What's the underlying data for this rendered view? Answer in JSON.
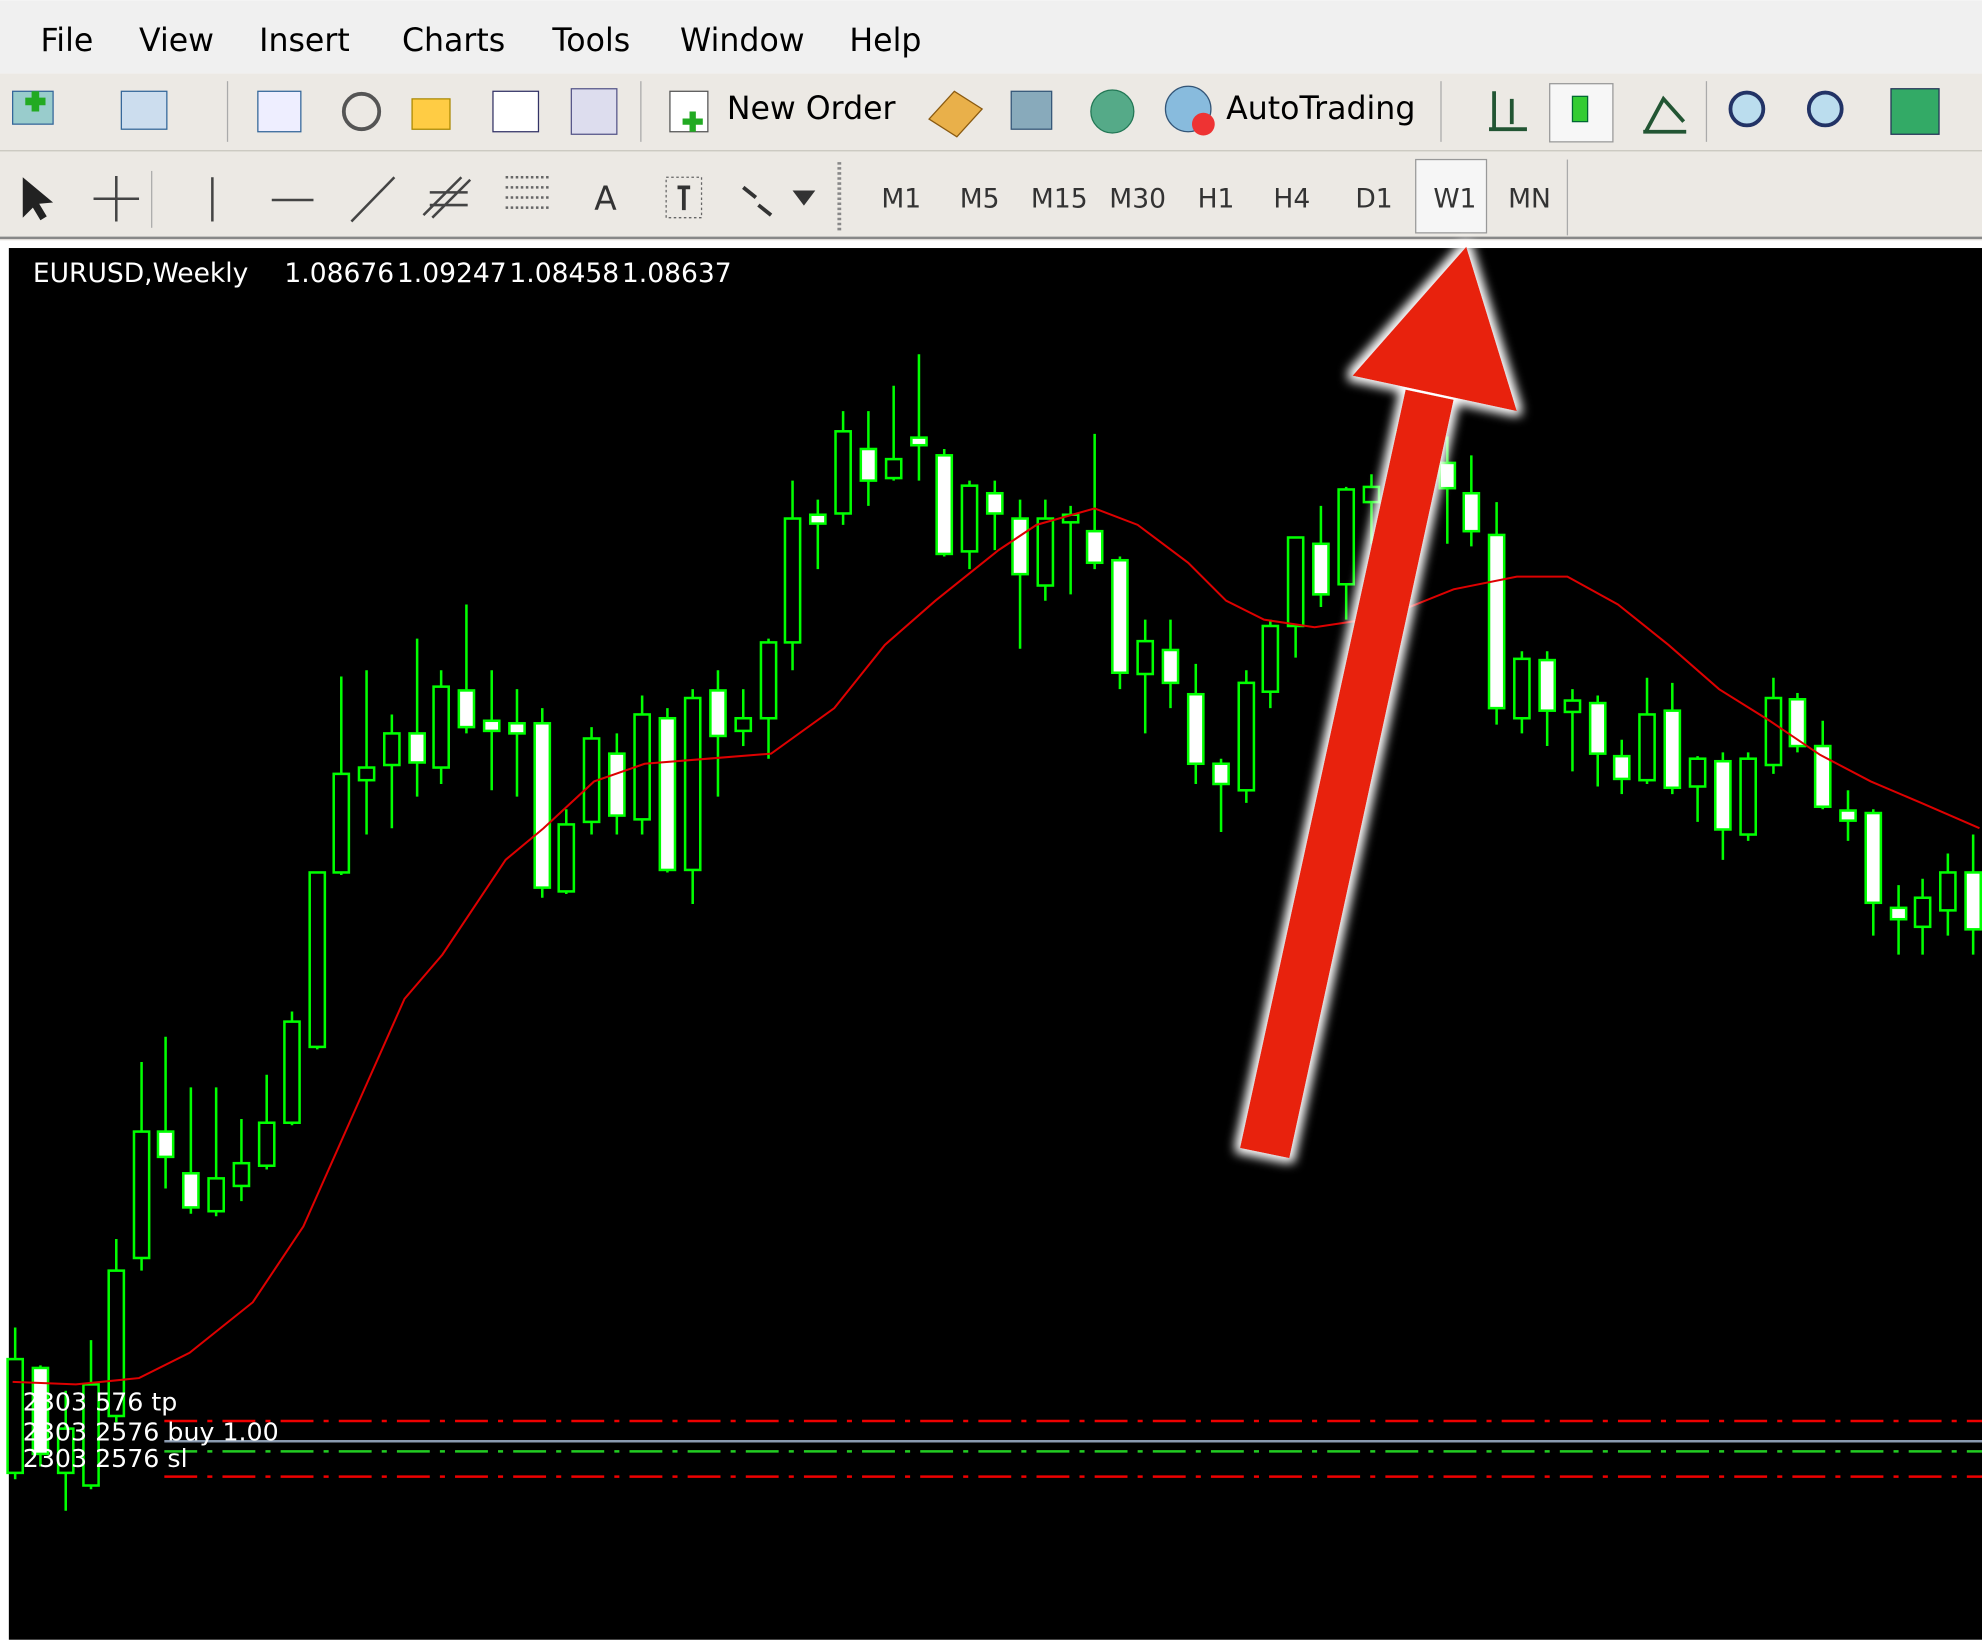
{
  "menu": [
    "File",
    "View",
    "Insert",
    "Charts",
    "Tools",
    "Window",
    "Help"
  ],
  "toolbar": {
    "new_order": "New Order",
    "autotrading": "AutoTrading"
  },
  "drawing_tools": {
    "text_tool": "A"
  },
  "timeframes": [
    "M1",
    "M5",
    "M15",
    "M30",
    "H1",
    "H4",
    "D1",
    "W1",
    "MN"
  ],
  "chart": {
    "symbol": "EURUSD,Weekly",
    "prices": [
      1.08676,
      1.09247,
      1.08458,
      1.08637
    ],
    "orders": [
      "2303 576 tp",
      "2303 2576 buy 1.00",
      "2303 2576 sl"
    ]
  }
}
